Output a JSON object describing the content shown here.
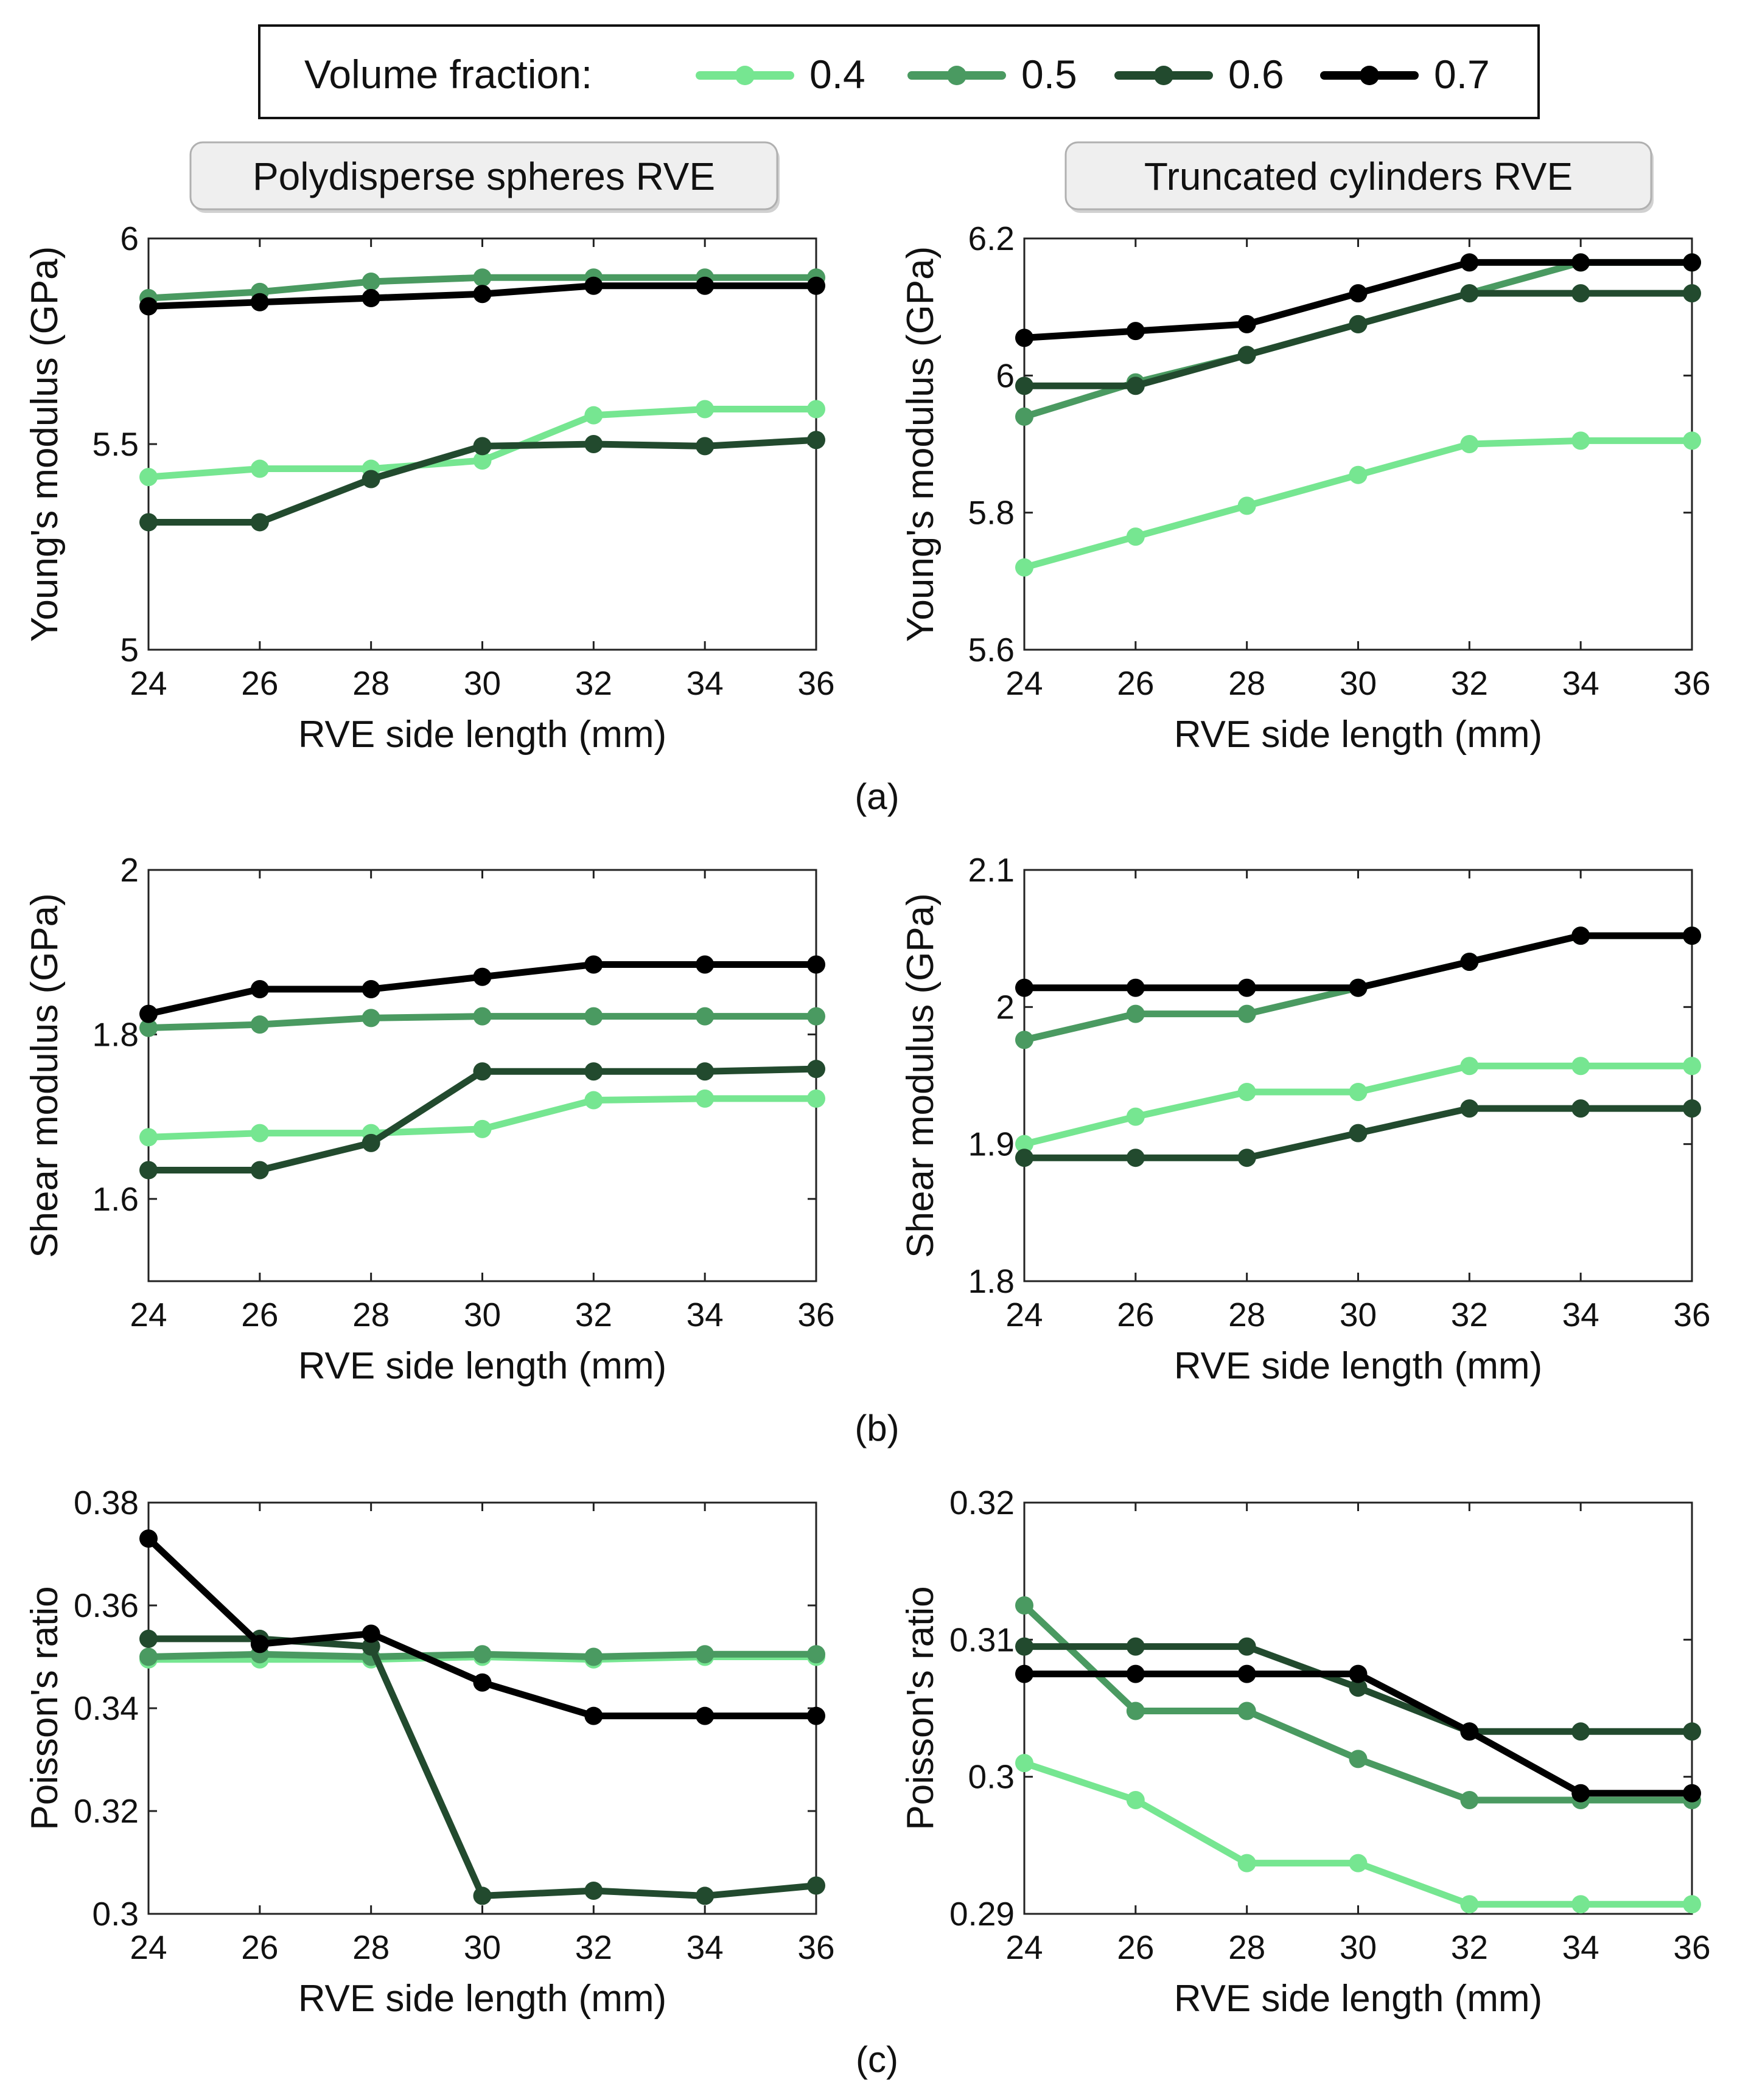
{
  "legend": {
    "title": "Volume fraction:",
    "entries": [
      {
        "label": "0.4",
        "color": "#76e691"
      },
      {
        "label": "0.5",
        "color": "#4a9a61"
      },
      {
        "label": "0.6",
        "color": "#224a2e"
      },
      {
        "label": "0.7",
        "color": "#000000"
      }
    ]
  },
  "column_titles": [
    "Polydisperse spheres RVE",
    "Truncated cylinders RVE"
  ],
  "panel_labels": [
    "(a)",
    "(b)",
    "(c)"
  ],
  "chart_data": [
    {
      "id": "a-spheres",
      "type": "line",
      "row": 0,
      "col": 0,
      "title": "Polydisperse spheres RVE",
      "xlabel": "RVE side length (mm)",
      "ylabel": "Young's modulus (GPa)",
      "xlim": [
        24,
        36
      ],
      "ylim": [
        5,
        6
      ],
      "xticks": [
        24,
        26,
        28,
        30,
        32,
        34,
        36
      ],
      "yticks": [
        5,
        5.5,
        6
      ],
      "ytick_labels": [
        "5",
        "5.5",
        "6"
      ],
      "x": [
        24,
        26,
        28,
        30,
        32,
        34,
        36
      ],
      "series": [
        {
          "name": "0.4",
          "values": [
            5.42,
            5.44,
            5.44,
            5.46,
            5.57,
            5.585,
            5.585
          ]
        },
        {
          "name": "0.5",
          "values": [
            5.855,
            5.87,
            5.895,
            5.905,
            5.905,
            5.905,
            5.905
          ]
        },
        {
          "name": "0.6",
          "values": [
            5.31,
            5.31,
            5.415,
            5.495,
            5.5,
            5.495,
            5.51
          ]
        },
        {
          "name": "0.7",
          "values": [
            5.835,
            5.845,
            5.855,
            5.865,
            5.885,
            5.885,
            5.885
          ]
        }
      ]
    },
    {
      "id": "a-cylinders",
      "type": "line",
      "row": 0,
      "col": 1,
      "title": "Truncated cylinders RVE",
      "xlabel": "RVE side length (mm)",
      "ylabel": "Young's modulus (GPa)",
      "xlim": [
        24,
        36
      ],
      "ylim": [
        5.6,
        6.2
      ],
      "xticks": [
        24,
        26,
        28,
        30,
        32,
        34,
        36
      ],
      "yticks": [
        5.6,
        5.8,
        6,
        6.2
      ],
      "ytick_labels": [
        "5.6",
        "5.8",
        "6",
        "6.2"
      ],
      "x": [
        24,
        26,
        28,
        30,
        32,
        34,
        36
      ],
      "series": [
        {
          "name": "0.4",
          "values": [
            5.72,
            5.765,
            5.81,
            5.855,
            5.9,
            5.905,
            5.905
          ]
        },
        {
          "name": "0.5",
          "values": [
            5.94,
            5.99,
            6.03,
            6.075,
            6.12,
            6.165,
            6.165
          ]
        },
        {
          "name": "0.6",
          "values": [
            5.985,
            5.985,
            6.03,
            6.075,
            6.12,
            6.12,
            6.12
          ]
        },
        {
          "name": "0.7",
          "values": [
            6.055,
            6.065,
            6.075,
            6.12,
            6.165,
            6.165,
            6.165
          ]
        }
      ]
    },
    {
      "id": "b-spheres",
      "type": "line",
      "row": 1,
      "col": 0,
      "xlabel": "RVE side length (mm)",
      "ylabel": "Shear modulus (GPa)",
      "xlim": [
        24,
        36
      ],
      "ylim": [
        1.5,
        2
      ],
      "xticks": [
        24,
        26,
        28,
        30,
        32,
        34,
        36
      ],
      "yticks": [
        1.6,
        1.8,
        2
      ],
      "ytick_labels": [
        "1.6",
        "1.8",
        "2"
      ],
      "x": [
        24,
        26,
        28,
        30,
        32,
        34,
        36
      ],
      "series": [
        {
          "name": "0.4",
          "values": [
            1.675,
            1.68,
            1.68,
            1.685,
            1.72,
            1.722,
            1.722
          ]
        },
        {
          "name": "0.5",
          "values": [
            1.808,
            1.812,
            1.82,
            1.822,
            1.822,
            1.822,
            1.822
          ]
        },
        {
          "name": "0.6",
          "values": [
            1.635,
            1.635,
            1.668,
            1.755,
            1.755,
            1.755,
            1.758
          ]
        },
        {
          "name": "0.7",
          "values": [
            1.825,
            1.855,
            1.855,
            1.87,
            1.885,
            1.885,
            1.885
          ]
        }
      ]
    },
    {
      "id": "b-cylinders",
      "type": "line",
      "row": 1,
      "col": 1,
      "xlabel": "RVE side length (mm)",
      "ylabel": "Shear modulus (GPa)",
      "xlim": [
        24,
        36
      ],
      "ylim": [
        1.8,
        2.1
      ],
      "xticks": [
        24,
        26,
        28,
        30,
        32,
        34,
        36
      ],
      "yticks": [
        1.8,
        1.9,
        2,
        2.1
      ],
      "ytick_labels": [
        "1.8",
        "1.9",
        "2",
        "2.1"
      ],
      "x": [
        24,
        26,
        28,
        30,
        32,
        34,
        36
      ],
      "series": [
        {
          "name": "0.4",
          "values": [
            1.9,
            1.92,
            1.938,
            1.938,
            1.957,
            1.957,
            1.957
          ]
        },
        {
          "name": "0.5",
          "values": [
            1.976,
            1.995,
            1.995,
            2.014,
            2.033,
            2.052,
            2.052
          ]
        },
        {
          "name": "0.6",
          "values": [
            1.89,
            1.89,
            1.89,
            1.908,
            1.926,
            1.926,
            1.926
          ]
        },
        {
          "name": "0.7",
          "values": [
            2.014,
            2.014,
            2.014,
            2.014,
            2.033,
            2.052,
            2.052
          ]
        }
      ]
    },
    {
      "id": "c-spheres",
      "type": "line",
      "row": 2,
      "col": 0,
      "xlabel": "RVE side length (mm)",
      "ylabel": "Poisson's ratio",
      "xlim": [
        24,
        36
      ],
      "ylim": [
        0.3,
        0.38
      ],
      "xticks": [
        24,
        26,
        28,
        30,
        32,
        34,
        36
      ],
      "yticks": [
        0.3,
        0.32,
        0.34,
        0.36,
        0.38
      ],
      "ytick_labels": [
        "0.3",
        "0.32",
        "0.34",
        "0.36",
        "0.38"
      ],
      "x": [
        24,
        26,
        28,
        30,
        32,
        34,
        36
      ],
      "series": [
        {
          "name": "0.4",
          "values": [
            0.3495,
            0.3495,
            0.3495,
            0.35,
            0.3495,
            0.35,
            0.35
          ]
        },
        {
          "name": "0.5",
          "values": [
            0.35,
            0.3505,
            0.35,
            0.3505,
            0.35,
            0.3505,
            0.3505
          ]
        },
        {
          "name": "0.6",
          "values": [
            0.3535,
            0.3535,
            0.352,
            0.3035,
            0.3045,
            0.3035,
            0.3055
          ]
        },
        {
          "name": "0.7",
          "values": [
            0.373,
            0.3525,
            0.3545,
            0.345,
            0.3385,
            0.3385,
            0.3385
          ]
        }
      ]
    },
    {
      "id": "c-cylinders",
      "type": "line",
      "row": 2,
      "col": 1,
      "xlabel": "RVE side length (mm)",
      "ylabel": "Poisson's ratio",
      "xlim": [
        24,
        36
      ],
      "ylim": [
        0.29,
        0.32
      ],
      "xticks": [
        24,
        26,
        28,
        30,
        32,
        34,
        36
      ],
      "yticks": [
        0.29,
        0.3,
        0.31,
        0.32
      ],
      "ytick_labels": [
        "0.29",
        "0.3",
        "0.31",
        "0.32"
      ],
      "x": [
        24,
        26,
        28,
        30,
        32,
        34,
        36
      ],
      "series": [
        {
          "name": "0.4",
          "values": [
            0.301,
            0.2983,
            0.2937,
            0.2937,
            0.2907,
            0.2907,
            0.2907
          ]
        },
        {
          "name": "0.5",
          "values": [
            0.3125,
            0.3048,
            0.3048,
            0.3013,
            0.2983,
            0.2983,
            0.2983
          ]
        },
        {
          "name": "0.6",
          "values": [
            0.3095,
            0.3095,
            0.3095,
            0.3065,
            0.3033,
            0.3033,
            0.3033
          ]
        },
        {
          "name": "0.7",
          "values": [
            0.3075,
            0.3075,
            0.3075,
            0.3075,
            0.3033,
            0.2988,
            0.2988
          ]
        }
      ]
    }
  ]
}
